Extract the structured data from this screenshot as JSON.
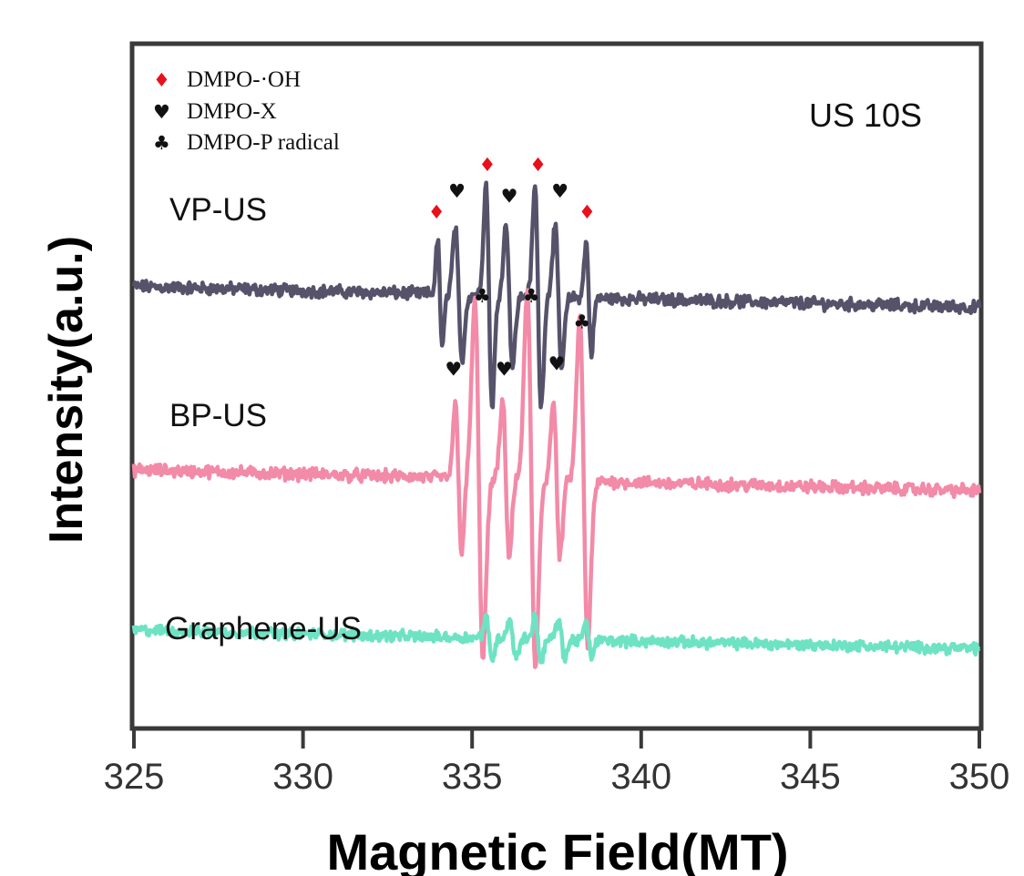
{
  "chart_data": {
    "type": "line",
    "title": "",
    "xlabel": "Magnetic Field(MT)",
    "ylabel": "Intensity(a.u.)",
    "xlim": [
      325,
      350
    ],
    "x_ticks": [
      "325",
      "330",
      "335",
      "340",
      "345",
      "350"
    ],
    "y_ticks": [],
    "annotation": "US 10S",
    "grid": false,
    "legend": {
      "placement": "top-left",
      "entries": [
        {
          "symbol": "diamond",
          "glyph": "♦",
          "label": "DMPO-·OH",
          "color": "#e8101a"
        },
        {
          "symbol": "heart",
          "glyph": "♥",
          "label": "DMPO-X",
          "color": "#111111"
        },
        {
          "symbol": "club",
          "glyph": "♣",
          "label": "DMPO-P radical",
          "color": "#111111"
        }
      ]
    },
    "series": [
      {
        "name": "VP-US",
        "color": "#55526a",
        "baseline": 4.2,
        "slope": -0.008,
        "noise": 0.09,
        "peaks": [
          {
            "x": 334.05,
            "a": 0.72,
            "w": 0.1
          },
          {
            "x": 334.6,
            "a": 0.9,
            "w": 0.14
          },
          {
            "x": 335.5,
            "a": 1.5,
            "w": 0.13
          },
          {
            "x": 336.1,
            "a": 0.95,
            "w": 0.14
          },
          {
            "x": 336.95,
            "a": 1.5,
            "w": 0.13
          },
          {
            "x": 337.55,
            "a": 0.95,
            "w": 0.14
          },
          {
            "x": 338.45,
            "a": 0.75,
            "w": 0.11
          }
        ],
        "markers": [
          {
            "x": 333.95,
            "y": 4.85,
            "symbol": "diamond"
          },
          {
            "x": 334.55,
            "y": 5.05,
            "symbol": "heart"
          },
          {
            "x": 335.45,
            "y": 5.3,
            "symbol": "diamond"
          },
          {
            "x": 336.1,
            "y": 5.0,
            "symbol": "heart"
          },
          {
            "x": 336.95,
            "y": 5.3,
            "symbol": "diamond"
          },
          {
            "x": 337.6,
            "y": 5.05,
            "symbol": "heart"
          },
          {
            "x": 338.4,
            "y": 4.85,
            "symbol": "diamond"
          }
        ]
      },
      {
        "name": "BP-US",
        "color": "#f28aa8",
        "baseline": 2.45,
        "slope": -0.008,
        "noise": 0.09,
        "peaks": [
          {
            "x": 334.6,
            "a": 1.0,
            "w": 0.13
          },
          {
            "x": 335.2,
            "a": 2.4,
            "w": 0.17
          },
          {
            "x": 336.0,
            "a": 1.05,
            "w": 0.14
          },
          {
            "x": 336.75,
            "a": 2.55,
            "w": 0.17
          },
          {
            "x": 337.5,
            "a": 1.05,
            "w": 0.14
          },
          {
            "x": 338.3,
            "a": 2.2,
            "w": 0.17
          }
        ],
        "markers": [
          {
            "x": 334.45,
            "y": 3.35,
            "symbol": "heart"
          },
          {
            "x": 335.3,
            "y": 4.05,
            "symbol": "club"
          },
          {
            "x": 335.95,
            "y": 3.35,
            "symbol": "heart"
          },
          {
            "x": 336.75,
            "y": 4.05,
            "symbol": "club"
          },
          {
            "x": 337.5,
            "y": 3.4,
            "symbol": "heart"
          },
          {
            "x": 338.25,
            "y": 3.8,
            "symbol": "club"
          }
        ]
      },
      {
        "name": "Graphene-US",
        "color": "#6ee3c4",
        "baseline": 0.92,
        "slope": -0.007,
        "noise": 0.08,
        "peaks": [
          {
            "x": 335.5,
            "a": 0.28,
            "w": 0.13
          },
          {
            "x": 336.2,
            "a": 0.25,
            "w": 0.14
          },
          {
            "x": 336.95,
            "a": 0.3,
            "w": 0.13
          },
          {
            "x": 337.65,
            "a": 0.24,
            "w": 0.14
          },
          {
            "x": 338.45,
            "a": 0.22,
            "w": 0.12
          }
        ],
        "markers": []
      }
    ]
  }
}
